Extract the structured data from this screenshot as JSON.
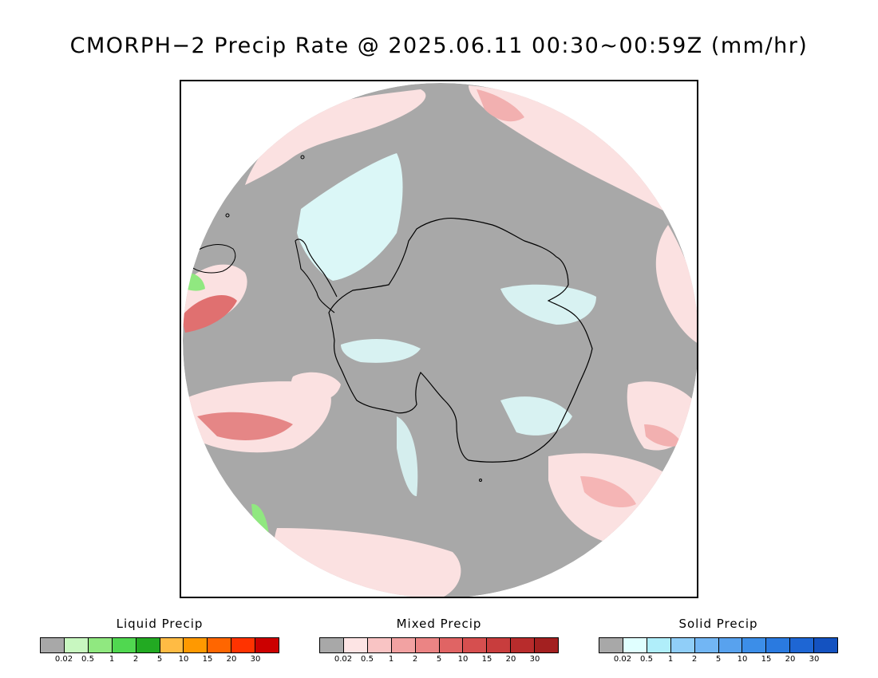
{
  "title": "CMORPH−2 Precip Rate @ 2025.06.11 00:30~00:59Z (mm/hr)",
  "map": {
    "projection": "south-polar-stereographic",
    "colors": {
      "background_gray": "#a8a8a8",
      "mixed_light": "#fbe1e1",
      "mixed_mid": "#f5b5b5",
      "mixed_dark": "#e06a6a",
      "solid_light": "#e0ffff",
      "liquid_light": "#90e880",
      "coastline": "#000000"
    }
  },
  "legends": [
    {
      "title": "Liquid Precip",
      "colors": [
        "#a8a8a8",
        "#c8f7c0",
        "#90e880",
        "#50d850",
        "#22aa22",
        "#ffbb44",
        "#ff9900",
        "#ff6600",
        "#ff3300",
        "#cc0000"
      ],
      "ticks": [
        "0.02",
        "0.5",
        "1",
        "2",
        "5",
        "10",
        "15",
        "20",
        "30"
      ]
    },
    {
      "title": "Mixed Precip",
      "colors": [
        "#a8a8a8",
        "#fde4e4",
        "#f9c4c4",
        "#f2a2a2",
        "#eb8484",
        "#e06464",
        "#d64f4f",
        "#c83d3d",
        "#b82c2c",
        "#a32020"
      ],
      "ticks": [
        "0.02",
        "0.5",
        "1",
        "2",
        "5",
        "10",
        "15",
        "20",
        "30"
      ]
    },
    {
      "title": "Solid Precip",
      "colors": [
        "#a8a8a8",
        "#e0ffff",
        "#b0eefa",
        "#90cef8",
        "#72b6f4",
        "#58a2ee",
        "#3c8ee8",
        "#2a7ae0",
        "#1e66d4",
        "#1452c0"
      ],
      "ticks": [
        "0.02",
        "0.5",
        "1",
        "2",
        "5",
        "10",
        "15",
        "20",
        "30"
      ]
    }
  ]
}
